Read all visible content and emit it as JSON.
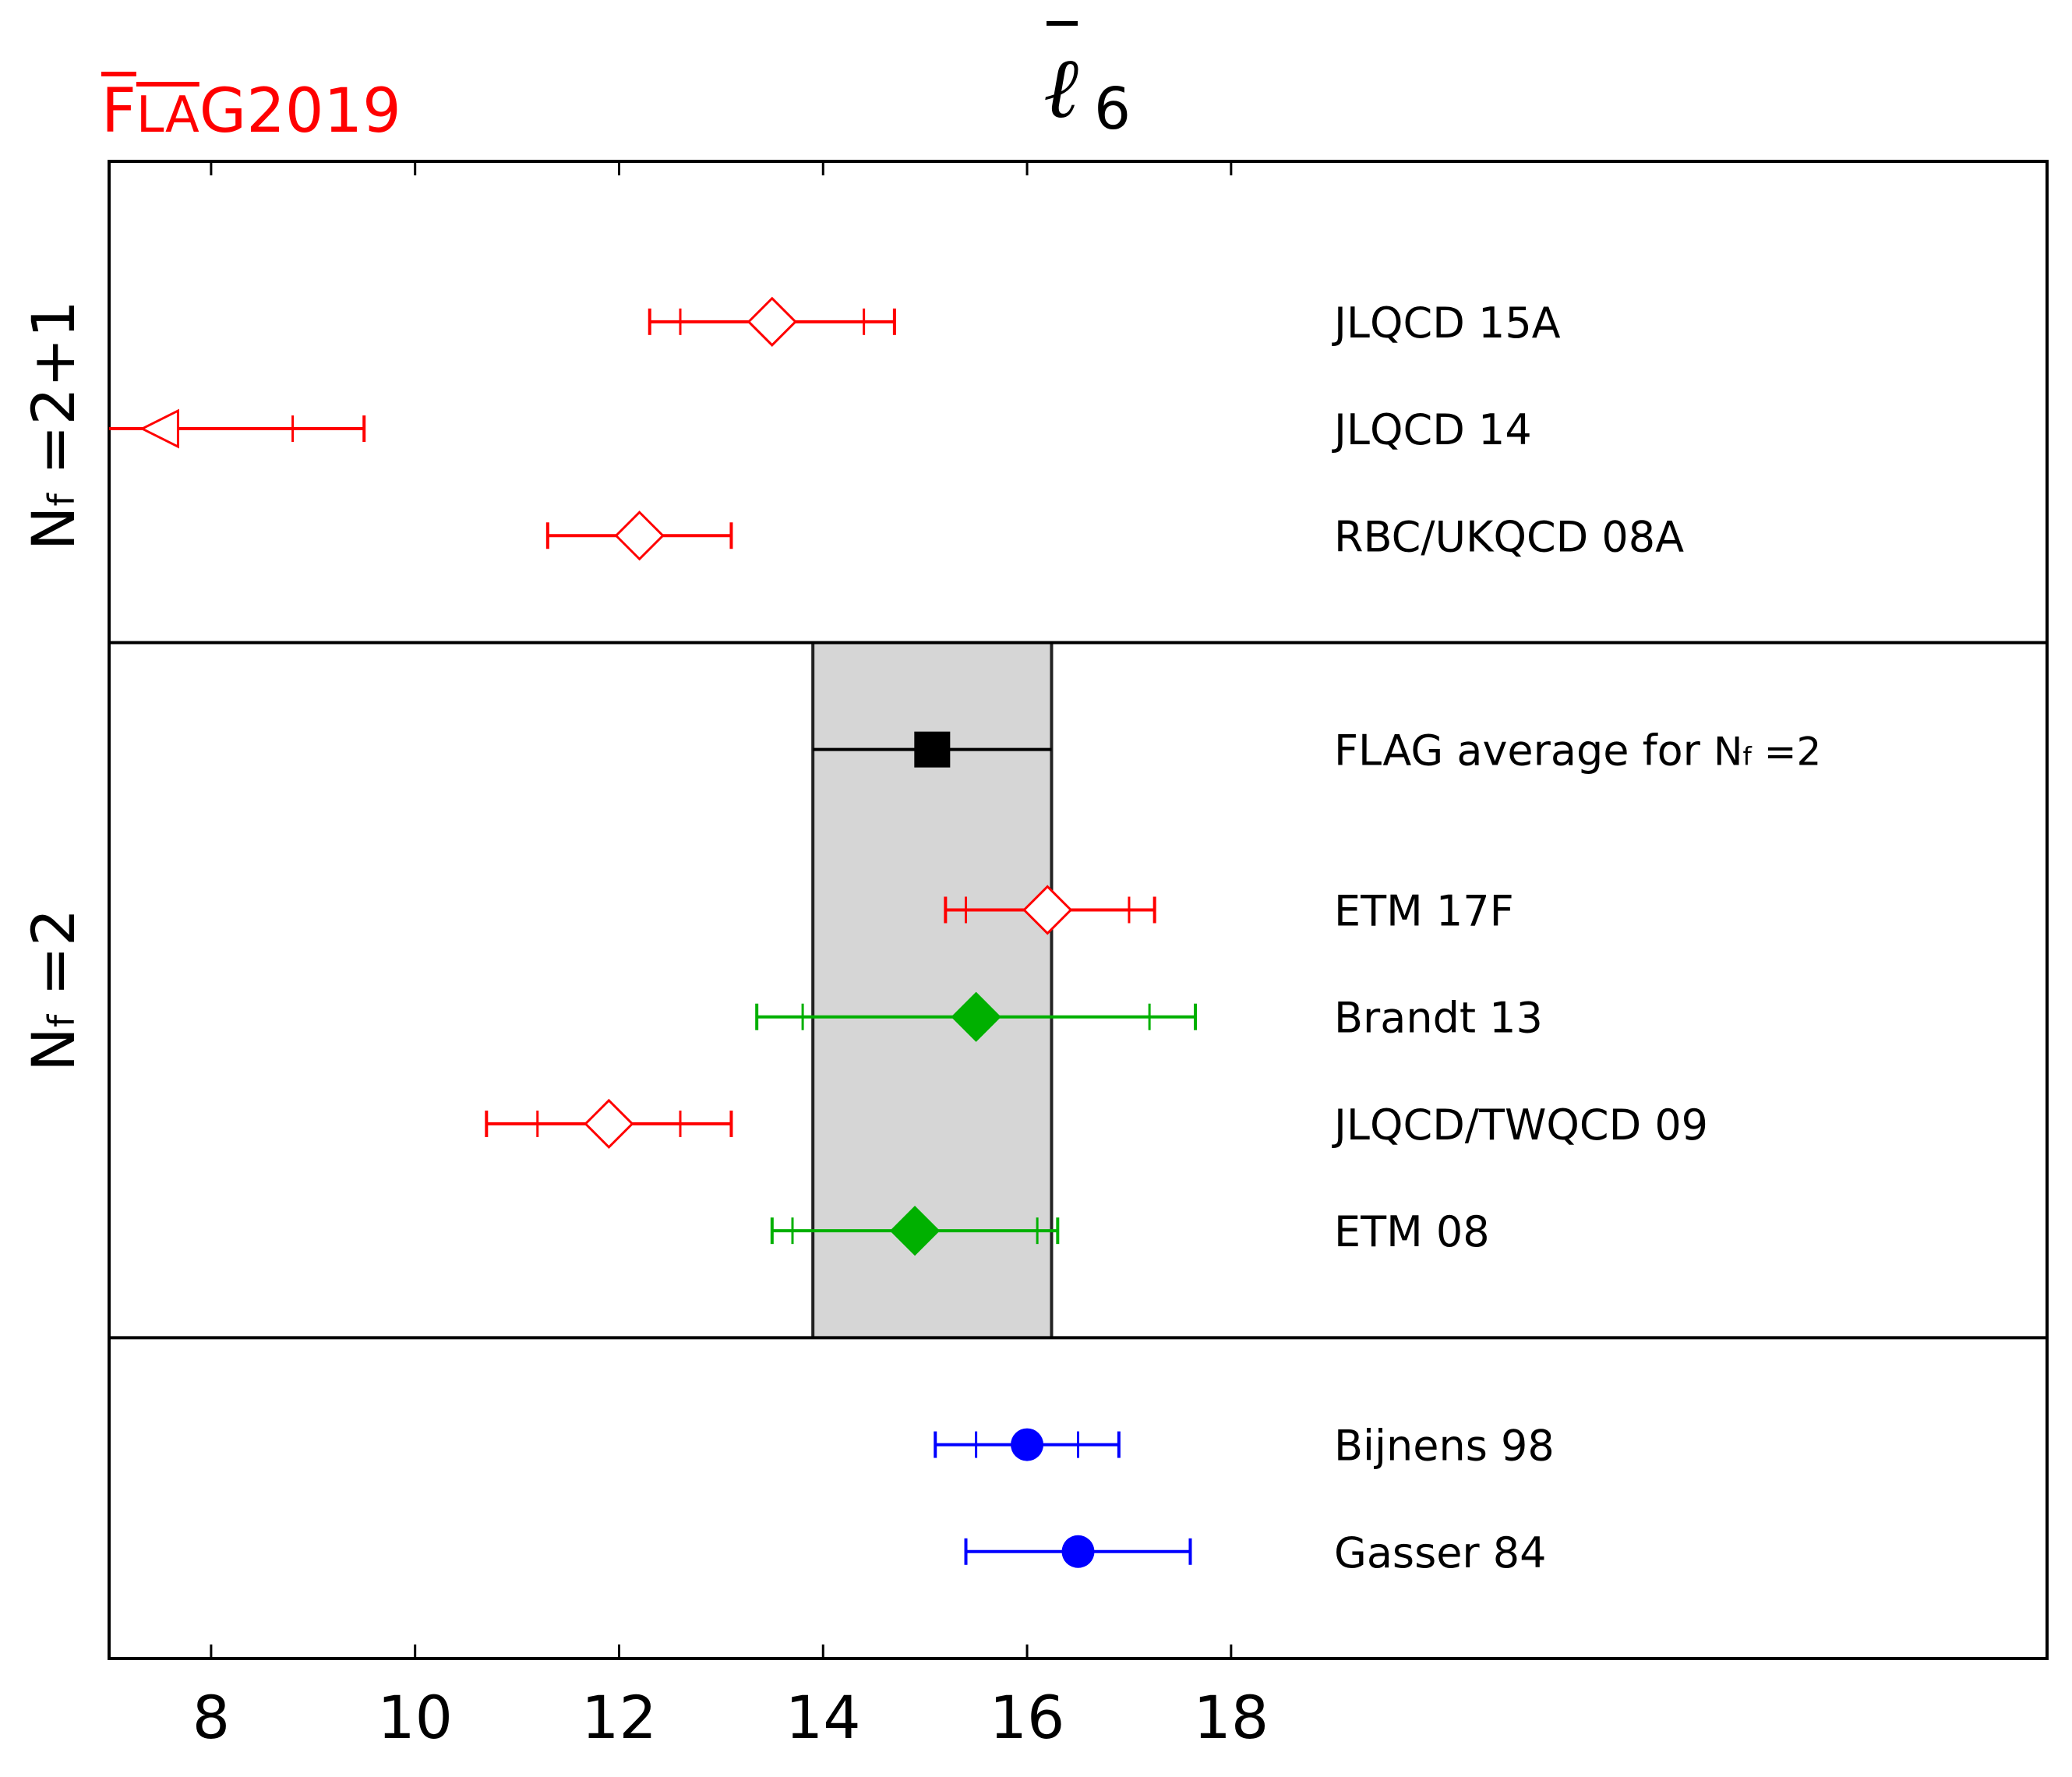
{
  "logo": {
    "prefix": "F",
    "middle": "LA",
    "suffix": "G",
    "year": "2019"
  },
  "chart_data": {
    "type": "scatter",
    "title": "ℓ̄₆",
    "title_base": "ℓ",
    "title_sub": "6",
    "xlabel": "",
    "ylabel": "",
    "xlim": [
      7,
      26
    ],
    "xticks": [
      8,
      10,
      12,
      14,
      16,
      18
    ],
    "grid": false,
    "colors": {
      "red": "#ff0000",
      "green": "#00b000",
      "blue": "#0000ff",
      "black": "#000000",
      "band": "#d6d6d6"
    },
    "panels": [
      {
        "label": "Nƒ =2+1",
        "label_main": "N",
        "label_sub": "f",
        "label_rest": " =2+1",
        "rows": 4.5
      },
      {
        "label": "Nƒ =2",
        "label_main": "N",
        "label_sub": "f",
        "label_rest": " =2",
        "rows": 6.5
      },
      {
        "label": "",
        "rows": 3
      }
    ],
    "band": {
      "panel": 1,
      "x_low": 13.9,
      "x_high": 16.24
    },
    "points": [
      {
        "panel": 0,
        "row": 1.5,
        "label": "JLQCD 15A",
        "x": 13.5,
        "stat_low": 12.6,
        "stat_high": 14.4,
        "tot_low": 12.3,
        "tot_high": 14.7,
        "marker": "diamond-open",
        "color": "red"
      },
      {
        "panel": 0,
        "row": 2.5,
        "label": "JLQCD 14",
        "x": 7.5,
        "stat_low": 7.0,
        "stat_high": 8.8,
        "tot_low": 7.0,
        "tot_high": 9.5,
        "marker": "triangle-left-open",
        "color": "red"
      },
      {
        "panel": 0,
        "row": 3.5,
        "label": "RBC/UKQCD 08A",
        "x": 12.2,
        "stat_low": 11.3,
        "stat_high": 13.1,
        "tot_low": 11.3,
        "tot_high": 13.1,
        "marker": "diamond-open",
        "color": "red"
      },
      {
        "panel": 1,
        "row": 1.0,
        "label": "FLAG average for ",
        "label_main": "N",
        "label_sub": "f",
        "label_rest": " =2",
        "x": 15.07,
        "stat_low": 13.9,
        "stat_high": 16.24,
        "tot_low": 13.9,
        "tot_high": 16.24,
        "marker": "square",
        "color": "black"
      },
      {
        "panel": 1,
        "row": 2.5,
        "label": "ETM 17F",
        "x": 16.2,
        "stat_low": 15.4,
        "stat_high": 17.0,
        "tot_low": 15.2,
        "tot_high": 17.25,
        "marker": "diamond-open",
        "color": "red"
      },
      {
        "panel": 1,
        "row": 3.5,
        "label": "Brandt 13",
        "x": 15.5,
        "stat_low": 13.8,
        "stat_high": 17.2,
        "tot_low": 13.35,
        "tot_high": 17.65,
        "marker": "diamond",
        "color": "green"
      },
      {
        "panel": 1,
        "row": 4.5,
        "label": "JLQCD/TWQCD 09",
        "x": 11.9,
        "stat_low": 11.2,
        "stat_high": 12.6,
        "tot_low": 10.7,
        "tot_high": 13.1,
        "marker": "diamond-open",
        "color": "red"
      },
      {
        "panel": 1,
        "row": 5.5,
        "label": "ETM 08",
        "x": 14.9,
        "stat_low": 13.7,
        "stat_high": 16.1,
        "tot_low": 13.5,
        "tot_high": 16.3,
        "marker": "diamond",
        "color": "green"
      },
      {
        "panel": 2,
        "row": 1.0,
        "label": "Bijnens 98",
        "x": 16.0,
        "stat_low": 15.5,
        "stat_high": 16.5,
        "tot_low": 15.1,
        "tot_high": 16.9,
        "marker": "circle",
        "color": "blue"
      },
      {
        "panel": 2,
        "row": 2.0,
        "label": "Gasser 84",
        "x": 16.5,
        "stat_low": 15.4,
        "stat_high": 17.6,
        "tot_low": 15.4,
        "tot_high": 17.6,
        "marker": "circle",
        "color": "blue"
      }
    ]
  }
}
